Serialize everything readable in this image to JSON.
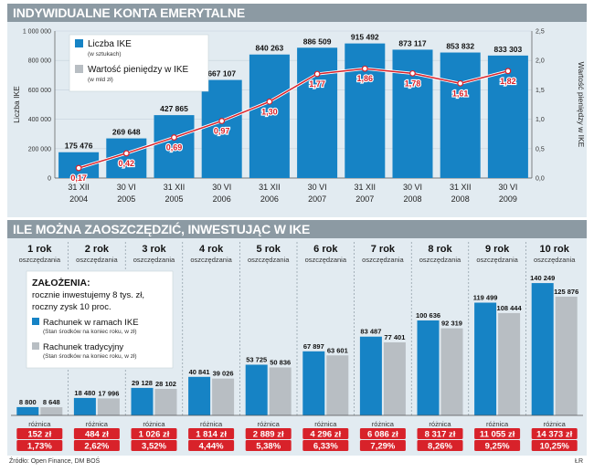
{
  "top": {
    "title": "INDYWIDUALNE KONTA EMERYTALNE",
    "left_axis_label": "Liczba IKE",
    "right_axis_label": "Wartość pieniędzy w IKE",
    "legend": [
      {
        "label": "Liczba IKE",
        "sub": "(w sztukach)"
      },
      {
        "label": "Wartość pieniędzy w IKE",
        "sub": "(w mld zł)"
      }
    ]
  },
  "bottom": {
    "title": "ILE MOŻNA ZAOSZCZĘDZIĆ, INWESTUJĄC W IKE",
    "assumptions_title": "ZAŁOŻENIA:",
    "assumptions_line1": "rocznie inwestujemy 8 tys. zł,",
    "assumptions_line2": "roczny zysk 10 proc.",
    "legend": [
      {
        "label": "Rachunek w ramach IKE",
        "sub": "(Stan środków na koniec roku, w zł)"
      },
      {
        "label": "Rachunek tradycyjny",
        "sub": "(Stan środków na koniec roku, w zł)"
      }
    ],
    "diff_label": "różnica"
  },
  "footer": {
    "source": "Źródło: Open Finance, DM BOŚ",
    "author": "ŁR"
  },
  "colors": {
    "band": "#8c9aa3",
    "panel": "#e2ebf1",
    "bar_blue": "#1683c5",
    "bar_gray": "#b8bec3",
    "line_red": "#d8222a"
  },
  "chart_data": [
    {
      "type": "bar",
      "title": "INDYWIDUALNE KONTA EMERYTALNE",
      "categories": [
        "31 XII 2004",
        "30 VI 2005",
        "31 XII 2005",
        "30 VI 2006",
        "31 XII 2006",
        "30 VI 2007",
        "31 XII 2007",
        "30 VI 2008",
        "31 XII 2008",
        "30 VI 2009"
      ],
      "category_lines": [
        [
          "31 XII",
          "2004"
        ],
        [
          "30 VI",
          "2005"
        ],
        [
          "31 XII",
          "2005"
        ],
        [
          "30 VI",
          "2006"
        ],
        [
          "31 XII",
          "2006"
        ],
        [
          "30 VI",
          "2007"
        ],
        [
          "31 XII",
          "2007"
        ],
        [
          "30 VI",
          "2008"
        ],
        [
          "31 XII",
          "2008"
        ],
        [
          "30 VI",
          "2009"
        ]
      ],
      "series": [
        {
          "name": "Liczba IKE",
          "axis": "left",
          "values": [
            175476,
            269648,
            427865,
            667107,
            840263,
            886509,
            915492,
            873117,
            853832,
            833303
          ],
          "labels": [
            "175 476",
            "269 648",
            "427 865",
            "667 107",
            "840 263",
            "886 509",
            "915 492",
            "873 117",
            "853 832",
            "833 303"
          ]
        },
        {
          "name": "Wartość pieniędzy w IKE",
          "axis": "right",
          "type": "line",
          "values": [
            0.17,
            0.42,
            0.69,
            0.97,
            1.3,
            1.77,
            1.86,
            1.78,
            1.61,
            1.82
          ],
          "labels": [
            "0,17",
            "0,42",
            "0,69",
            "0,97",
            "1,30",
            "1,77",
            "1,86",
            "1,78",
            "1,61",
            "1,82"
          ]
        }
      ],
      "ylim": [
        0,
        1000000
      ],
      "yticks": [
        0,
        200000,
        400000,
        600000,
        800000,
        1000000
      ],
      "ytick_labels": [
        "0",
        "200 000",
        "400 000",
        "600 000",
        "800 000",
        "1 000 000"
      ],
      "y2lim": [
        0,
        2.5
      ],
      "y2ticks": [
        0,
        0.5,
        1.0,
        1.5,
        2.0,
        2.5
      ],
      "y2tick_labels": [
        "0,0",
        "0,5",
        "1,0",
        "1,5",
        "2,0",
        "2,5"
      ],
      "ylabel": "Liczba IKE",
      "y2label": "Wartość pieniędzy w IKE"
    },
    {
      "type": "bar",
      "title": "ILE MOŻNA ZAOSZCZĘDZIĆ, INWESTUJĄC W IKE",
      "categories": [
        "1 rok",
        "2 rok",
        "3 rok",
        "4 rok",
        "5 rok",
        "6 rok",
        "7 rok",
        "8 rok",
        "9 rok",
        "10 rok"
      ],
      "category_sub": "oszczędzania",
      "ylim": [
        0,
        150000
      ],
      "series": [
        {
          "name": "Rachunek w ramach IKE",
          "values": [
            8800,
            18480,
            29128,
            40841,
            53725,
            67897,
            83487,
            100636,
            119499,
            140249
          ],
          "labels": [
            "8 800",
            "18 480",
            "29 128",
            "40 841",
            "53 725",
            "67 897",
            "83 487",
            "100 636",
            "119 499",
            "140 249"
          ]
        },
        {
          "name": "Rachunek tradycyjny",
          "values": [
            8648,
            17996,
            28102,
            39026,
            50836,
            63601,
            77401,
            92319,
            108444,
            125876
          ],
          "labels": [
            "8 648",
            "17 996",
            "28 102",
            "39 026",
            "50 836",
            "63 601",
            "77 401",
            "92 319",
            "108 444",
            "125 876"
          ]
        }
      ],
      "difference_amounts": [
        "152 zł",
        "484 zł",
        "1 026 zł",
        "1 814 zł",
        "2 889 zł",
        "4 296 zł",
        "6 086 zł",
        "8 317 zł",
        "11 055 zł",
        "14 373 zł"
      ],
      "difference_percents": [
        "1,73%",
        "2,62%",
        "3,52%",
        "4,44%",
        "5,38%",
        "6,33%",
        "7,29%",
        "8,26%",
        "9,25%",
        "10,25%"
      ]
    }
  ]
}
